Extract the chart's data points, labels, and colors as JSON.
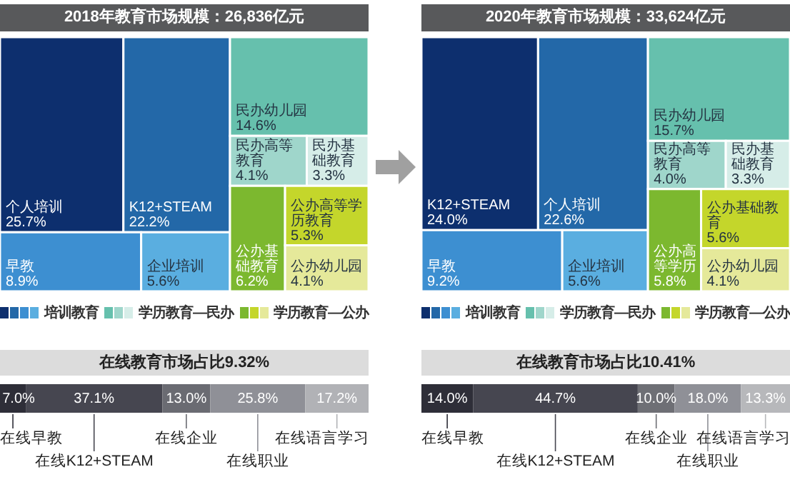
{
  "chart_data": [
    {
      "type": "other",
      "title": "2018年教育市场规模：26,836亿元",
      "legend": "bottom",
      "categories": [
        "个人培训",
        "K12+STEAM",
        "早教",
        "企业培训",
        "民办幼儿园",
        "民办高等教育",
        "民办基础教育",
        "公办基础教育",
        "公办高等学历教育",
        "公办幼儿园"
      ],
      "series": [
        {
          "name": "培训教育",
          "colors": [
            "#0d2f6e",
            "#2368a8",
            "#3d8fd1",
            "#5aaee0",
            null,
            null,
            null,
            null,
            null,
            null
          ],
          "values": [
            25.7,
            22.2,
            8.9,
            5.6,
            null,
            null,
            null,
            null,
            null,
            null
          ],
          "value_labels": [
            "25.7%",
            "22.2%",
            "8.9%",
            "5.6%",
            null,
            null,
            null,
            null,
            null,
            null
          ]
        },
        {
          "name": "学历教育—民办",
          "colors": [
            null,
            null,
            null,
            null,
            "#66c0ad",
            "#9fd6cb",
            "#d6ede8",
            null,
            null,
            null
          ],
          "values": [
            null,
            null,
            null,
            null,
            14.6,
            4.1,
            3.3,
            null,
            null,
            null
          ],
          "value_labels": [
            null,
            null,
            null,
            null,
            "14.6%",
            "4.1%",
            "3.3%",
            null,
            null,
            null
          ]
        },
        {
          "name": "学历教育—公办",
          "colors": [
            null,
            null,
            null,
            null,
            null,
            null,
            null,
            "#7cb82f",
            "#c4d62b",
            "#e5e99a"
          ],
          "values": [
            null,
            null,
            null,
            null,
            null,
            null,
            null,
            6.2,
            5.3,
            4.1
          ],
          "value_labels": [
            null,
            null,
            null,
            null,
            null,
            null,
            null,
            "6.2%",
            "5.3%",
            "4.1%"
          ]
        }
      ]
    },
    {
      "type": "other",
      "title": "2020年教育市场规模：33,624亿元",
      "legend": "bottom",
      "categories": [
        "K12+STEAM",
        "个人培训",
        "早教",
        "企业培训",
        "民办幼儿园",
        "民办高等教育",
        "民办基础教育",
        "公办高等学历",
        "公办基础教育",
        "公办幼儿园"
      ],
      "series": [
        {
          "name": "培训教育",
          "colors": [
            "#0d2f6e",
            "#2368a8",
            "#3d8fd1",
            "#5aaee0",
            null,
            null,
            null,
            null,
            null,
            null
          ],
          "values": [
            24.0,
            22.6,
            9.2,
            5.6,
            null,
            null,
            null,
            null,
            null,
            null
          ],
          "value_labels": [
            "24.0%",
            "22.6%",
            "9.2%",
            "5.6%",
            null,
            null,
            null,
            null,
            null,
            null
          ]
        },
        {
          "name": "学历教育—民办",
          "colors": [
            null,
            null,
            null,
            null,
            "#66c0ad",
            "#9fd6cb",
            "#d6ede8",
            null,
            null,
            null
          ],
          "values": [
            null,
            null,
            null,
            null,
            15.7,
            4.0,
            3.3,
            null,
            null,
            null
          ],
          "value_labels": [
            null,
            null,
            null,
            null,
            "15.7%",
            "4.0%",
            "3.3%",
            null,
            null,
            null
          ]
        },
        {
          "name": "学历教育—公办",
          "colors": [
            null,
            null,
            null,
            null,
            null,
            null,
            null,
            "#7cb82f",
            "#c4d62b",
            "#e5e99a"
          ],
          "values": [
            null,
            null,
            null,
            null,
            null,
            null,
            null,
            5.8,
            5.6,
            4.1
          ],
          "value_labels": [
            null,
            null,
            null,
            null,
            null,
            null,
            null,
            "5.8%",
            "5.6%",
            "4.1%"
          ]
        }
      ]
    },
    {
      "type": "bar",
      "orientation": "horizontal",
      "stacked": true,
      "legend": "bottom",
      "title": "在线教育市场占比9.32%",
      "categories": [
        null
      ],
      "series": [
        {
          "name": "在线早教",
          "color": "#2e2e38",
          "values": [
            7.0
          ],
          "value_labels": [
            "7.0%"
          ]
        },
        {
          "name": "在线K12+STEAM",
          "color": "#464650",
          "values": [
            37.1
          ],
          "value_labels": [
            "37.1%"
          ]
        },
        {
          "name": "在线企业",
          "color": "#6a6b72",
          "values": [
            13.0
          ],
          "value_labels": [
            "13.0%"
          ]
        },
        {
          "name": "在线职业",
          "color": "#8f9097",
          "values": [
            25.8
          ],
          "value_labels": [
            "25.8%"
          ]
        },
        {
          "name": "在线语言学习",
          "color": "#b1b2b6",
          "values": [
            17.2
          ],
          "value_labels": [
            "17.2%"
          ]
        }
      ]
    },
    {
      "type": "bar",
      "orientation": "horizontal",
      "stacked": true,
      "legend": "bottom",
      "title": "在线教育市场占比10.41%",
      "categories": [
        null
      ],
      "series": [
        {
          "name": "在线早教",
          "color": "#2e2e38",
          "values": [
            14.0
          ],
          "value_labels": [
            "14.0%"
          ]
        },
        {
          "name": "在线K12+STEAM",
          "color": "#464650",
          "values": [
            44.7
          ],
          "value_labels": [
            "44.7%"
          ]
        },
        {
          "name": "在线企业",
          "color": "#6e6f75",
          "values": [
            10.0
          ],
          "value_labels": [
            "10.0%"
          ]
        },
        {
          "name": "在线职业",
          "color": "#8f9097",
          "values": [
            18.0
          ],
          "value_labels": [
            "18.0%"
          ]
        },
        {
          "name": "在线语言学习",
          "color": "#b7b8bb",
          "values": [
            13.3
          ],
          "value_labels": [
            "13.3%"
          ]
        }
      ]
    }
  ]
}
